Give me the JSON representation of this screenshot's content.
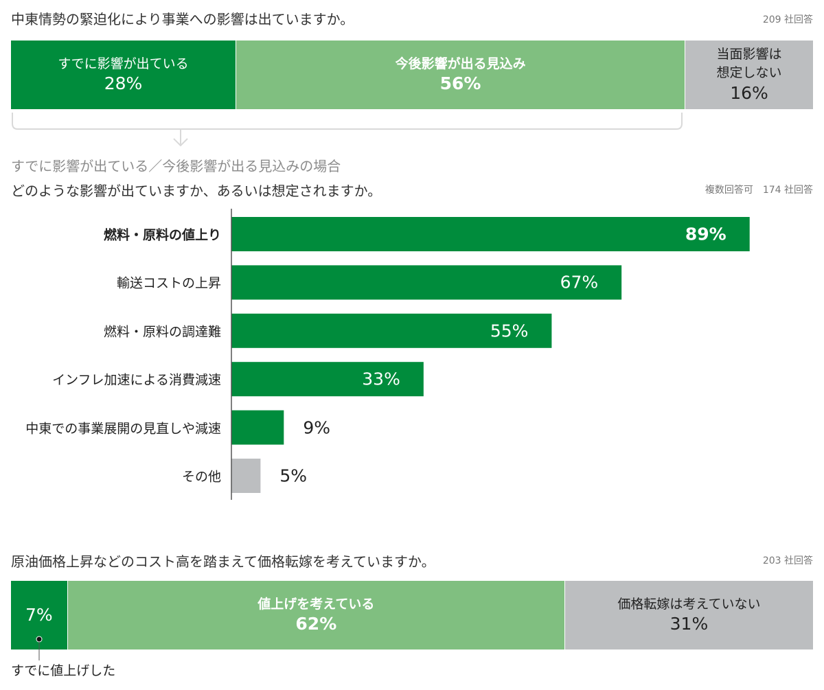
{
  "colors": {
    "dark_green": "#008c3c",
    "light_green": "#80bf80",
    "grey": "#bcbec0",
    "axis": "#555555"
  },
  "q1": {
    "title": "中東情勢の緊迫化により事業への影響は出ていますか。",
    "respondents": "209 社回答",
    "segments": [
      {
        "label": "すでに影響が出ている",
        "value": 28,
        "pct_text": "28%",
        "color": "dark_green"
      },
      {
        "label": "今後影響が出る見込み",
        "value": 56,
        "pct_text": "56%",
        "color": "light_green"
      },
      {
        "label": "当面影響は\n想定しない",
        "value": 16,
        "pct_text": "16%",
        "color": "grey"
      }
    ]
  },
  "condition_note": "すでに影響が出ている／今後影響が出る見込みの場合",
  "q2": {
    "title": "どのような影響が出ていますか、あるいは想定されますか。",
    "respondents": "複数回答可　174 社回答"
  },
  "chart_data": {
    "type": "bar",
    "orientation": "horizontal",
    "categories": [
      "燃料・原料の値上り",
      "輸送コストの上昇",
      "燃料・原料の調達難",
      "インフレ加速による消費減速",
      "中東での事業展開の見直しや減速",
      "その他"
    ],
    "values": [
      89,
      67,
      55,
      33,
      9,
      5
    ],
    "value_labels": [
      "89%",
      "67%",
      "55%",
      "33%",
      "9%",
      "5%"
    ],
    "bar_colors": [
      "dark_green",
      "dark_green",
      "dark_green",
      "dark_green",
      "dark_green",
      "grey"
    ],
    "xlim": [
      0,
      100
    ],
    "grid": false
  },
  "q3": {
    "title": "原油価格上昇などのコスト高を踏まえて価格転嫁を考えていますか。",
    "respondents": "203 社回答",
    "segments": [
      {
        "label": "",
        "value": 7,
        "pct_text": "7%",
        "color": "dark_green"
      },
      {
        "label": "値上げを考えている",
        "value": 62,
        "pct_text": "62%",
        "color": "light_green"
      },
      {
        "label": "価格転嫁は考えていない",
        "value": 31,
        "pct_text": "31%",
        "color": "grey"
      }
    ],
    "callout": "すでに値上げした"
  }
}
